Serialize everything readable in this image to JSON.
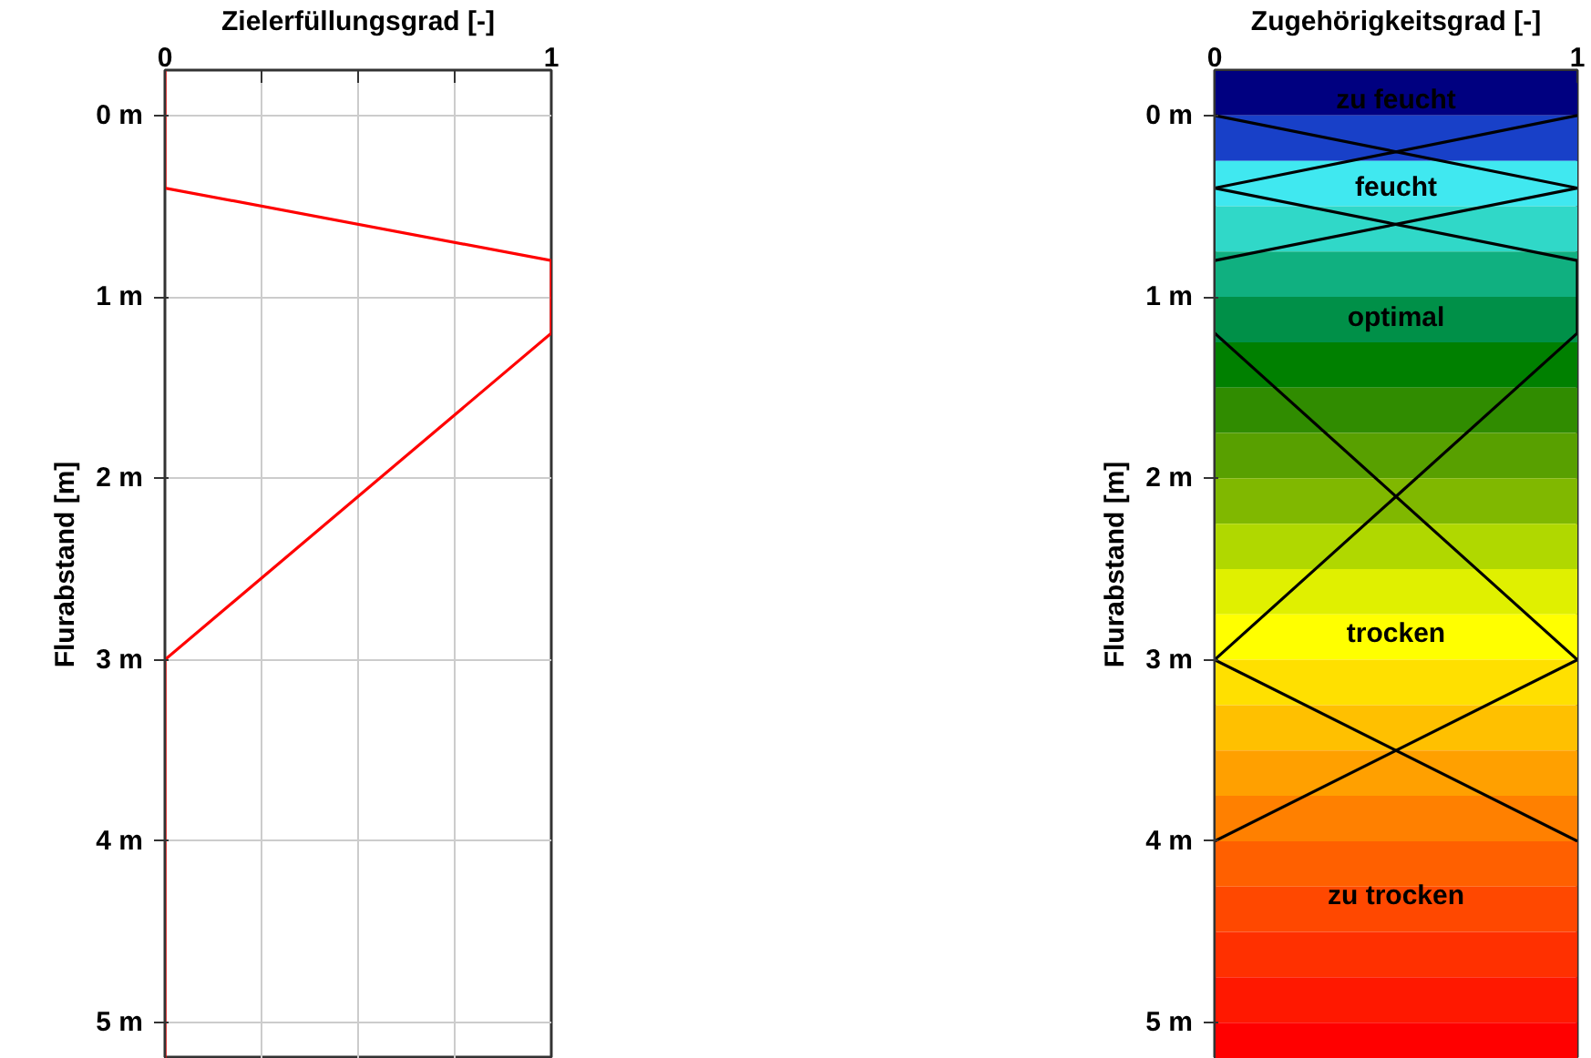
{
  "chart_data": [
    {
      "type": "line",
      "orientation": "horizontal",
      "xlabel": "Zielerfüllungsgrad [-]",
      "ylabel": "Flurabstand [m]",
      "xlim": [
        0,
        1
      ],
      "xticks": [
        0,
        {
          "value": 0.25,
          "label": null
        },
        {
          "value": 0.5,
          "label": null
        },
        {
          "value": 0.75,
          "label": null
        },
        1
      ],
      "ylim": [
        5.2,
        -0.25
      ],
      "yticks": [
        {
          "value": 0,
          "label": "0 m"
        },
        {
          "value": 1,
          "label": "1 m"
        },
        {
          "value": 2,
          "label": "2 m"
        },
        {
          "value": 3,
          "label": "3 m"
        },
        {
          "value": 4,
          "label": "4 m"
        },
        {
          "value": 5,
          "label": "5 m"
        }
      ],
      "grid": true,
      "series": [
        {
          "color": "#ff0000",
          "x": [
            -0.25,
            0.4,
            0.8,
            1.2,
            3,
            5.2
          ],
          "values": [
            0,
            0,
            1,
            1,
            0,
            0
          ]
        }
      ]
    },
    {
      "type": "line",
      "orientation": "horizontal",
      "xlabel": "Zugehörigkeitsgrad [-]",
      "ylabel": "Flurabstand [m]",
      "xlim": [
        0,
        1
      ],
      "xticks": [
        0,
        1
      ],
      "ylim": [
        5.2,
        -0.25
      ],
      "yticks": [
        {
          "value": 0,
          "label": "0 m"
        },
        {
          "value": 1,
          "label": "1 m"
        },
        {
          "value": 2,
          "label": "2 m"
        },
        {
          "value": 3,
          "label": "3 m"
        },
        {
          "value": 4,
          "label": "4 m"
        },
        {
          "value": 5,
          "label": "5 m"
        }
      ],
      "grid": false,
      "series": [
        {
          "color": "#000000",
          "x": [
            0,
            0.4
          ],
          "values": [
            1,
            0
          ]
        },
        {
          "color": "#000000",
          "x": [
            0,
            0.4,
            0.8
          ],
          "values": [
            0,
            1,
            0
          ]
        },
        {
          "color": "#000000",
          "x": [
            0.4,
            0.8,
            1.2,
            3
          ],
          "values": [
            0,
            1,
            1,
            0
          ]
        },
        {
          "color": "#000000",
          "x": [
            1.2,
            3,
            4
          ],
          "values": [
            0,
            1,
            0
          ]
        },
        {
          "color": "#000000",
          "x": [
            3,
            4
          ],
          "values": [
            0,
            1
          ]
        }
      ],
      "annotations": [
        "zu feucht",
        "feucht",
        "optimal",
        "trocken",
        "zu trocken"
      ],
      "bands": [
        {
          "axis": "y",
          "from": -0.25,
          "to": 0,
          "color": "#000080"
        },
        {
          "axis": "y",
          "from": 0,
          "to": 0.25,
          "color": "#1840c8"
        },
        {
          "axis": "y",
          "from": 0.25,
          "to": 0.5,
          "color": "#40e8f0"
        },
        {
          "axis": "y",
          "from": 0.5,
          "to": 0.75,
          "color": "#30d8c8"
        },
        {
          "axis": "y",
          "from": 0.75,
          "to": 1,
          "color": "#10b080"
        },
        {
          "axis": "y",
          "from": 1,
          "to": 1.25,
          "color": "#009048"
        },
        {
          "axis": "y",
          "from": 1.25,
          "to": 1.5,
          "color": "#008000"
        },
        {
          "axis": "y",
          "from": 1.5,
          "to": 1.75,
          "color": "#308c00"
        },
        {
          "axis": "y",
          "from": 1.75,
          "to": 2,
          "color": "#58a000"
        },
        {
          "axis": "y",
          "from": 2,
          "to": 2.25,
          "color": "#80b800"
        },
        {
          "axis": "y",
          "from": 2.25,
          "to": 2.5,
          "color": "#b0d800"
        },
        {
          "axis": "y",
          "from": 2.5,
          "to": 2.75,
          "color": "#e0f000"
        },
        {
          "axis": "y",
          "from": 2.75,
          "to": 3,
          "color": "#ffff00"
        },
        {
          "axis": "y",
          "from": 3,
          "to": 3.25,
          "color": "#ffe000"
        },
        {
          "axis": "y",
          "from": 3.25,
          "to": 3.5,
          "color": "#ffc000"
        },
        {
          "axis": "y",
          "from": 3.5,
          "to": 3.75,
          "color": "#ffa000"
        },
        {
          "axis": "y",
          "from": 3.75,
          "to": 4,
          "color": "#ff8000"
        },
        {
          "axis": "y",
          "from": 4,
          "to": 4.25,
          "color": "#ff6000"
        },
        {
          "axis": "y",
          "from": 4.25,
          "to": 4.5,
          "color": "#ff4800"
        },
        {
          "axis": "y",
          "from": 4.5,
          "to": 4.75,
          "color": "#ff3000"
        },
        {
          "axis": "y",
          "from": 4.75,
          "to": 5,
          "color": "#ff1800"
        },
        {
          "axis": "y",
          "from": 5,
          "to": 5.2,
          "color": "#ff0000"
        }
      ]
    }
  ]
}
